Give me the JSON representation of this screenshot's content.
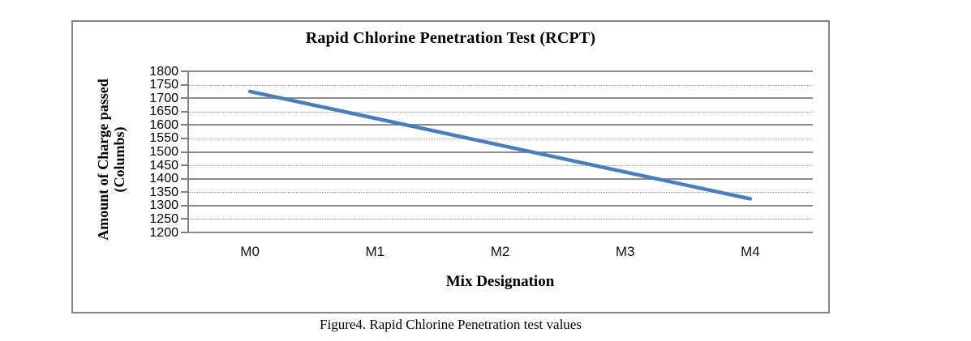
{
  "figure": {
    "caption": "Figure4. Rapid Chlorine Penetration test values"
  },
  "chart_data": {
    "type": "line",
    "title": "Rapid Chlorine Penetration Test (RCPT)",
    "categories": [
      "M0",
      "M1",
      "M2",
      "M3",
      "M4"
    ],
    "values": [
      1725,
      1625,
      1525,
      1425,
      1325
    ],
    "xlabel": "Mix Designation",
    "ylabel_line1": "Amount of Charge passed",
    "ylabel_line2": "(Columbs)",
    "ylim": [
      1200,
      1800
    ],
    "ytick_step": 50,
    "grid": "horizontal only; major solid, minor dotted",
    "legend_position": "none",
    "line_color": "#4A7EBB",
    "major_gridline_color": "#8C8C8C",
    "minor_gridline_color": "#9A9A9A",
    "axis_color": "#808080",
    "frame_border_color": "#848484"
  }
}
